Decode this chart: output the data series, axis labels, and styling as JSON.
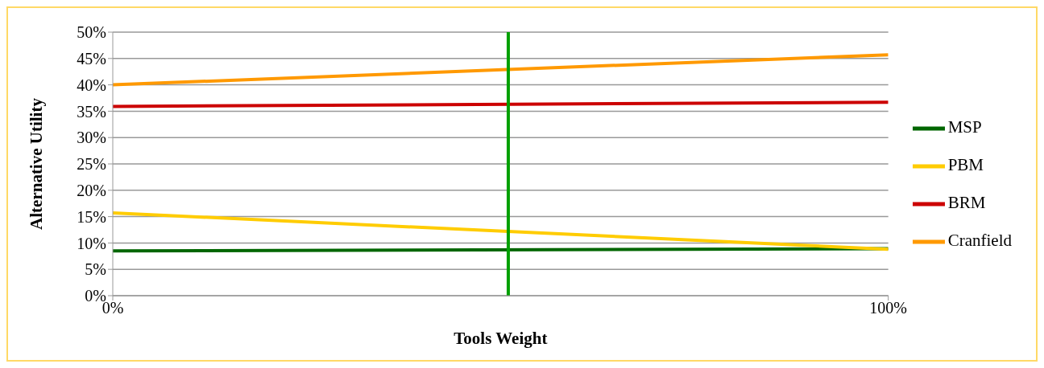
{
  "chart_data": {
    "type": "line",
    "xlabel": "Tools Weight",
    "ylabel": "Alternative Utility",
    "x": [
      0,
      100
    ],
    "series": [
      {
        "name": "MSP",
        "color": "#006600",
        "values": [
          8.5,
          8.9
        ]
      },
      {
        "name": "PBM",
        "color": "#ffcc00",
        "values": [
          15.7,
          8.8
        ]
      },
      {
        "name": "BRM",
        "color": "#cc0000",
        "values": [
          35.9,
          36.7
        ]
      },
      {
        "name": "Cranfield",
        "color": "#ff9900",
        "values": [
          40,
          45.7
        ]
      }
    ],
    "xlim": [
      0,
      100
    ],
    "xticks": [
      {
        "value": 0,
        "label": "0%"
      },
      {
        "value": 100,
        "label": "100%"
      }
    ],
    "ylim": [
      0,
      50
    ],
    "yticks": [
      {
        "value": 0,
        "label": "0%"
      },
      {
        "value": 5,
        "label": "5%"
      },
      {
        "value": 10,
        "label": "10%"
      },
      {
        "value": 15,
        "label": "15%"
      },
      {
        "value": 20,
        "label": "20%"
      },
      {
        "value": 25,
        "label": "25%"
      },
      {
        "value": 30,
        "label": "30%"
      },
      {
        "value": 35,
        "label": "35%"
      },
      {
        "value": 40,
        "label": "40%"
      },
      {
        "value": 45,
        "label": "45%"
      },
      {
        "value": 50,
        "label": "50%"
      }
    ],
    "ref_lines": [
      {
        "axis": "x",
        "value": 51,
        "color": "#00a000"
      }
    ],
    "grid": "y",
    "legend": "right"
  }
}
